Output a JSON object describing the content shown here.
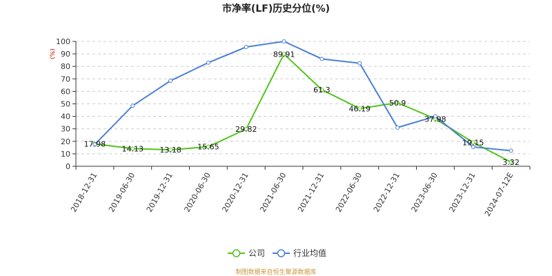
{
  "chart_data": {
    "type": "line",
    "title": "市净率(LF)历史分位(%)",
    "unit_label": "(%)",
    "categories": [
      "2018-12-31",
      "2019-06-30",
      "2019-12-31",
      "2020-06-30",
      "2020-12-31",
      "2021-06-30",
      "2021-12-31",
      "2022-06-30",
      "2022-12-31",
      "2023-06-30",
      "2023-12-31",
      "2024-07-12E"
    ],
    "ylim": [
      0,
      100
    ],
    "yticks": [
      0,
      10,
      20,
      30,
      40,
      50,
      60,
      70,
      80,
      90,
      100
    ],
    "grid": true,
    "legend_position": "bottom-center",
    "series": [
      {
        "name": "公司",
        "color": "#52c41a",
        "values": [
          17.98,
          14.13,
          13.18,
          15.65,
          29.82,
          89.91,
          61.3,
          46.19,
          50.9,
          37.98,
          19.15,
          3.32
        ],
        "labels": [
          "17.98",
          "14.13",
          "13.18",
          "15.65",
          "29.82",
          "89.91",
          "61.3",
          "46.19",
          "50.9",
          "37.98",
          "19.15",
          "3.32"
        ]
      },
      {
        "name": "行业均值",
        "color": "#4a7fd6",
        "values": [
          17.5,
          48.5,
          68.5,
          83.0,
          95.5,
          100,
          86.0,
          82.5,
          31.0,
          40.0,
          15.5,
          12.5
        ]
      }
    ],
    "source": "制图数据来自恒生聚源数据库"
  }
}
